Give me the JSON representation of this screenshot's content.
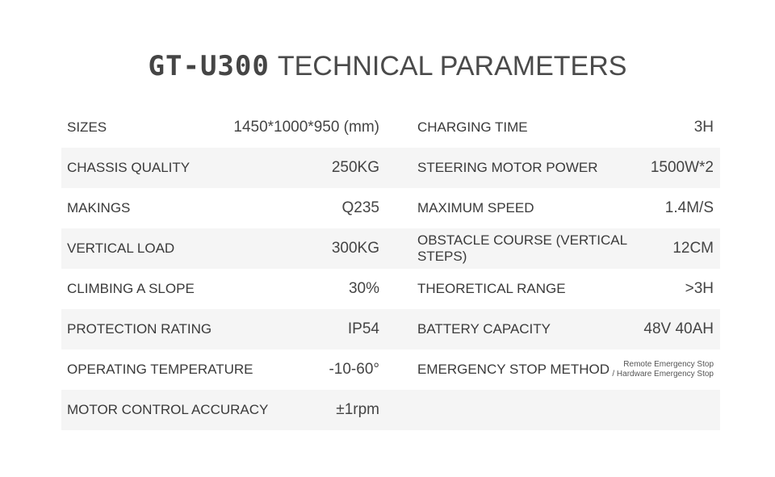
{
  "title": {
    "model": "GT-U300",
    "text": "TECHNICAL PARAMETERS"
  },
  "rows": [
    {
      "left": {
        "label": "SIZES",
        "value": "1450*1000*950 (mm)"
      },
      "right": {
        "label": "CHARGING TIME",
        "value": "3H"
      }
    },
    {
      "left": {
        "label": "CHASSIS QUALITY",
        "value": "250KG"
      },
      "right": {
        "label": "STEERING MOTOR POWER",
        "value": "1500W*2"
      }
    },
    {
      "left": {
        "label": "MAKINGS",
        "value": "Q235"
      },
      "right": {
        "label": "MAXIMUM SPEED",
        "value": "1.4M/S"
      }
    },
    {
      "left": {
        "label": "VERTICAL LOAD",
        "value": "300KG"
      },
      "right": {
        "label": "OBSTACLE COURSE (VERTICAL STEPS)",
        "value": "12CM"
      }
    },
    {
      "left": {
        "label": "CLIMBING A SLOPE",
        "value": "30%"
      },
      "right": {
        "label": "THEORETICAL RANGE",
        "value": ">3H"
      }
    },
    {
      "left": {
        "label": "PROTECTION RATING",
        "value": "IP54"
      },
      "right": {
        "label": "BATTERY CAPACITY",
        "value": "48V 40AH"
      }
    },
    {
      "left": {
        "label": "OPERATING TEMPERATURE",
        "value": "-10-60°"
      },
      "right": {
        "label": "EMERGENCY STOP METHOD",
        "value": "Remote Emergency Stop",
        "value2": "/ Hardware Emergency Stop"
      }
    },
    {
      "left": {
        "label": "MOTOR CONTROL ACCURACY",
        "value": "±1rpm"
      },
      "right": {
        "label": "",
        "value": ""
      }
    }
  ]
}
